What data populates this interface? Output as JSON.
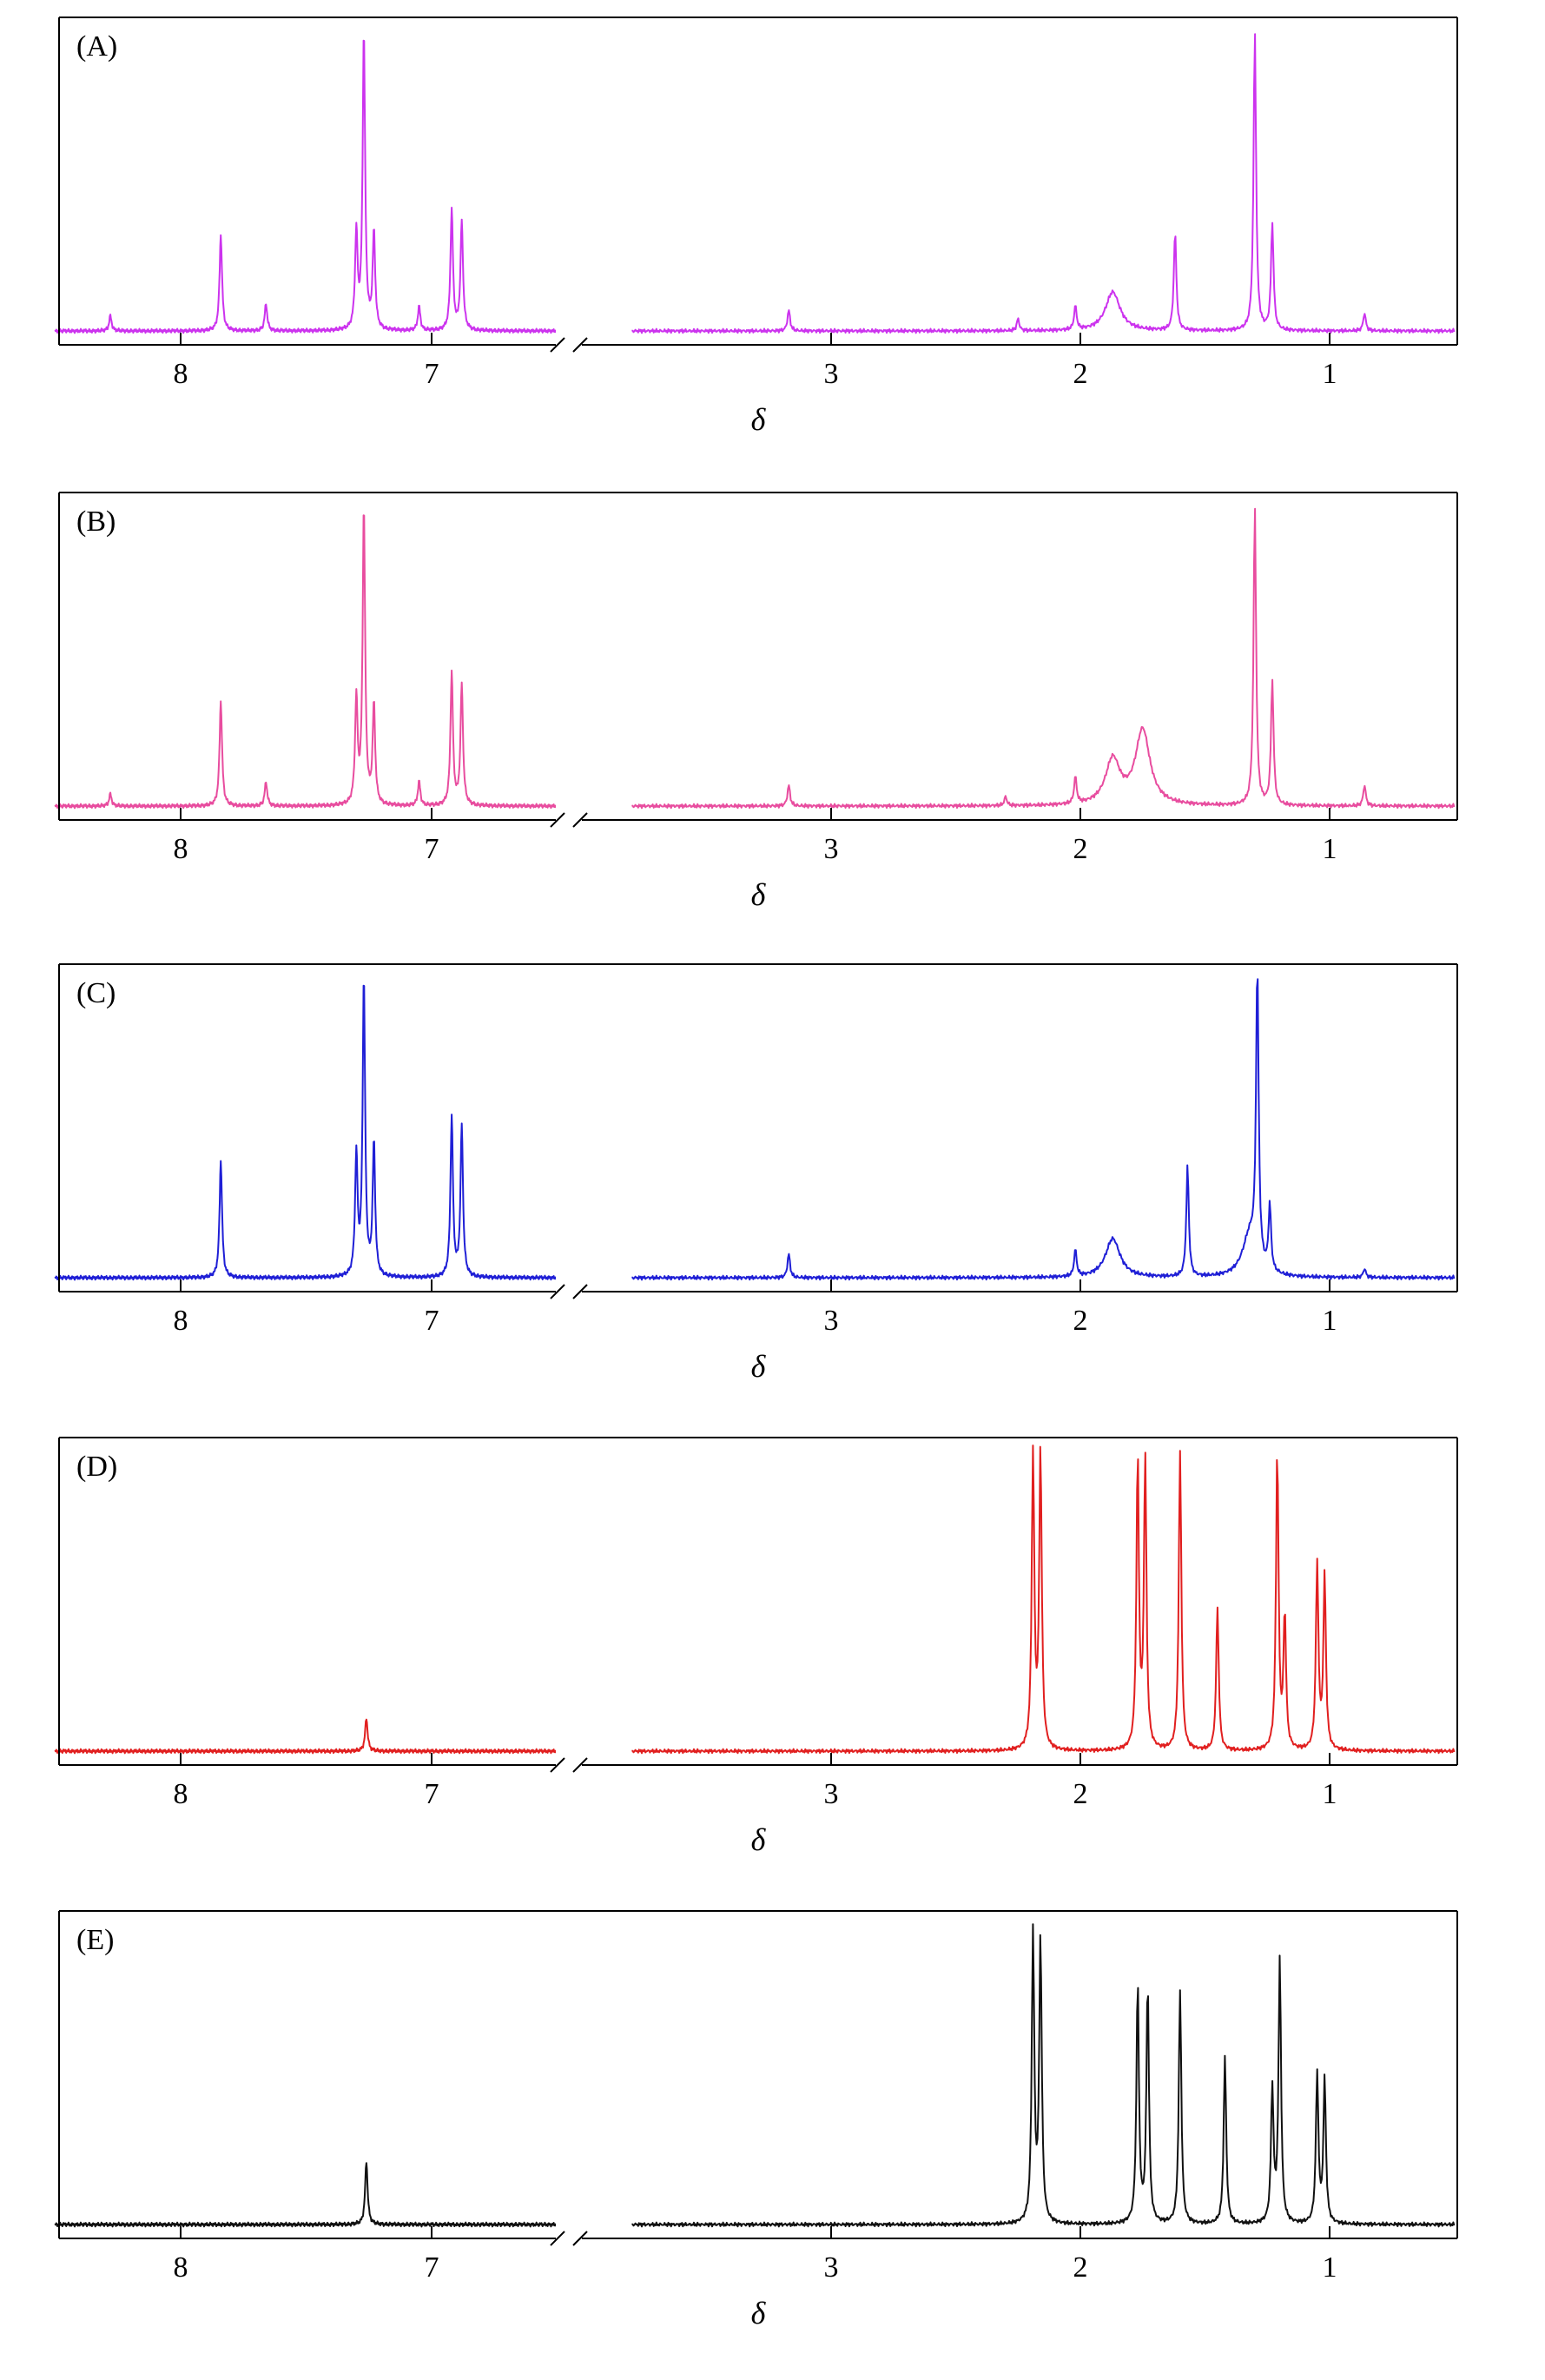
{
  "chart_data": [
    {
      "type": "line",
      "panel_label": "(A)",
      "xlabel": "δ",
      "ylabel": "",
      "color": "#cc33ee",
      "x_axis": {
        "reversed": true,
        "broken": true,
        "segments": [
          [
            8.5,
            6.5
          ],
          [
            3.8,
            0.5
          ]
        ],
        "ticks": [
          "8",
          "7",
          "3",
          "2",
          "1"
        ]
      },
      "peaks": [
        {
          "x": 8.28,
          "y": 0.05
        },
        {
          "x": 7.84,
          "y": 0.32
        },
        {
          "x": 7.66,
          "y": 0.09
        },
        {
          "x": 7.3,
          "y": 0.32
        },
        {
          "x": 7.27,
          "y": 0.98
        },
        {
          "x": 7.23,
          "y": 0.32
        },
        {
          "x": 7.05,
          "y": 0.08
        },
        {
          "x": 6.92,
          "y": 0.4
        },
        {
          "x": 6.88,
          "y": 0.36
        },
        {
          "x": 3.17,
          "y": 0.07
        },
        {
          "x": 2.25,
          "y": 0.04
        },
        {
          "x": 2.02,
          "y": 0.08
        },
        {
          "x": 1.87,
          "y": 0.13
        },
        {
          "x": 1.62,
          "y": 0.33
        },
        {
          "x": 1.3,
          "y": 1.0
        },
        {
          "x": 1.23,
          "y": 0.36
        },
        {
          "x": 0.86,
          "y": 0.06
        }
      ]
    },
    {
      "type": "line",
      "panel_label": "(B)",
      "xlabel": "δ",
      "ylabel": "",
      "color": "#e84d9f",
      "x_axis": {
        "reversed": true,
        "broken": true,
        "segments": [
          [
            8.5,
            6.5
          ],
          [
            3.8,
            0.5
          ]
        ],
        "ticks": [
          "8",
          "7",
          "3",
          "2",
          "1"
        ]
      },
      "peaks": [
        {
          "x": 8.28,
          "y": 0.04
        },
        {
          "x": 7.84,
          "y": 0.35
        },
        {
          "x": 7.66,
          "y": 0.08
        },
        {
          "x": 7.3,
          "y": 0.35
        },
        {
          "x": 7.27,
          "y": 0.98
        },
        {
          "x": 7.23,
          "y": 0.33
        },
        {
          "x": 7.05,
          "y": 0.08
        },
        {
          "x": 6.92,
          "y": 0.44
        },
        {
          "x": 6.88,
          "y": 0.4
        },
        {
          "x": 3.17,
          "y": 0.07
        },
        {
          "x": 2.3,
          "y": 0.03
        },
        {
          "x": 2.02,
          "y": 0.09
        },
        {
          "x": 1.87,
          "y": 0.15
        },
        {
          "x": 1.75,
          "y": 0.25
        },
        {
          "x": 1.3,
          "y": 1.0
        },
        {
          "x": 1.23,
          "y": 0.42
        },
        {
          "x": 0.86,
          "y": 0.07
        }
      ]
    },
    {
      "type": "line",
      "panel_label": "(C)",
      "xlabel": "δ",
      "ylabel": "",
      "color": "#1f1fd6",
      "x_axis": {
        "reversed": true,
        "broken": true,
        "segments": [
          [
            8.5,
            6.5
          ],
          [
            3.8,
            0.5
          ]
        ],
        "ticks": [
          "8",
          "7",
          "3",
          "2",
          "1"
        ]
      },
      "peaks": [
        {
          "x": 7.84,
          "y": 0.39
        },
        {
          "x": 7.3,
          "y": 0.4
        },
        {
          "x": 7.27,
          "y": 0.98
        },
        {
          "x": 7.23,
          "y": 0.44
        },
        {
          "x": 6.92,
          "y": 0.53
        },
        {
          "x": 6.88,
          "y": 0.5
        },
        {
          "x": 3.17,
          "y": 0.08
        },
        {
          "x": 2.02,
          "y": 0.09
        },
        {
          "x": 1.87,
          "y": 0.13
        },
        {
          "x": 1.57,
          "y": 0.37
        },
        {
          "x": 1.32,
          "y": 0.14
        },
        {
          "x": 1.29,
          "y": 0.98
        },
        {
          "x": 1.24,
          "y": 0.22
        },
        {
          "x": 0.86,
          "y": 0.03
        }
      ]
    },
    {
      "type": "line",
      "panel_label": "(D)",
      "xlabel": "δ",
      "ylabel": "",
      "color": "#e11f1f",
      "x_axis": {
        "reversed": true,
        "broken": true,
        "segments": [
          [
            8.5,
            6.5
          ],
          [
            3.8,
            0.5
          ]
        ],
        "ticks": [
          "8",
          "7",
          "3",
          "2",
          "1"
        ]
      },
      "peaks": [
        {
          "x": 7.26,
          "y": 0.11
        },
        {
          "x": 2.19,
          "y": 1.0
        },
        {
          "x": 2.16,
          "y": 1.0
        },
        {
          "x": 1.77,
          "y": 0.97
        },
        {
          "x": 1.74,
          "y": 0.97
        },
        {
          "x": 1.6,
          "y": 1.0
        },
        {
          "x": 1.45,
          "y": 0.48
        },
        {
          "x": 1.21,
          "y": 1.0
        },
        {
          "x": 1.18,
          "y": 0.45
        },
        {
          "x": 1.05,
          "y": 0.62
        },
        {
          "x": 1.02,
          "y": 0.58
        }
      ]
    },
    {
      "type": "line",
      "panel_label": "(E)",
      "xlabel": "δ",
      "ylabel": "",
      "color": "#111111",
      "x_axis": {
        "reversed": true,
        "broken": true,
        "segments": [
          [
            8.5,
            6.5
          ],
          [
            3.8,
            0.5
          ]
        ],
        "ticks": [
          "8",
          "7",
          "3",
          "2",
          "1"
        ]
      },
      "peaks": [
        {
          "x": 7.26,
          "y": 0.21
        },
        {
          "x": 2.19,
          "y": 0.97
        },
        {
          "x": 2.16,
          "y": 0.95
        },
        {
          "x": 1.77,
          "y": 0.8
        },
        {
          "x": 1.73,
          "y": 0.8
        },
        {
          "x": 1.6,
          "y": 0.78
        },
        {
          "x": 1.42,
          "y": 0.56
        },
        {
          "x": 1.23,
          "y": 0.45
        },
        {
          "x": 1.2,
          "y": 0.88
        },
        {
          "x": 1.05,
          "y": 0.5
        },
        {
          "x": 1.02,
          "y": 0.48
        }
      ]
    }
  ]
}
